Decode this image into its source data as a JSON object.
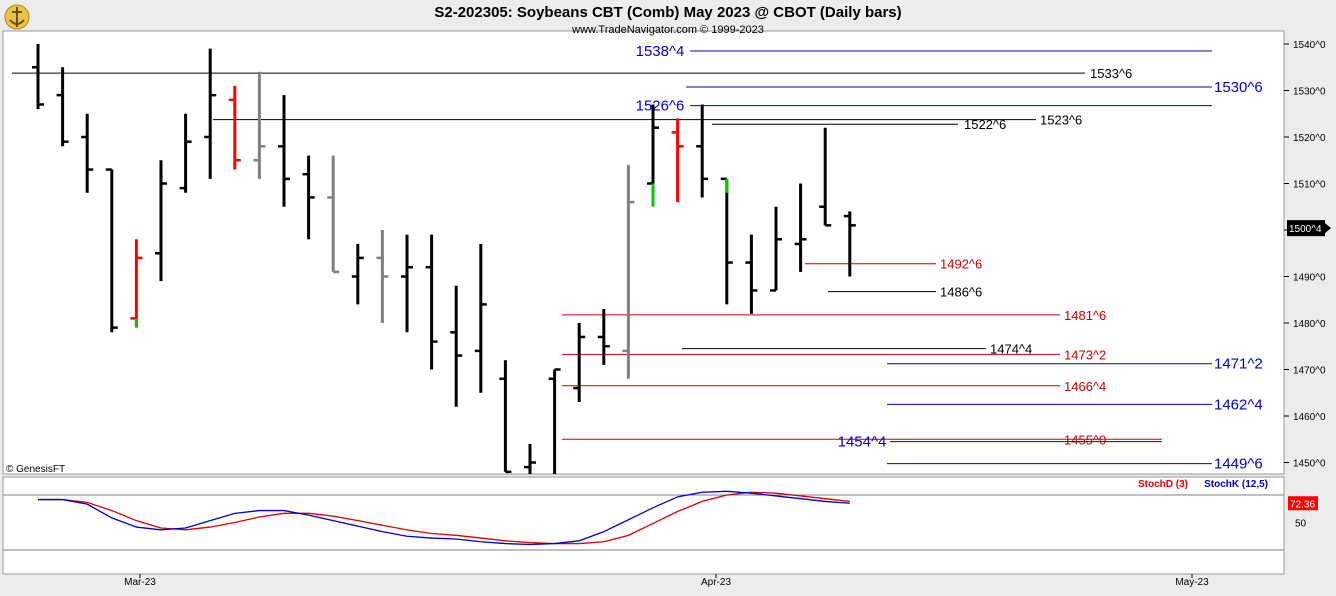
{
  "header": {
    "title": "S2-202305:  Soybeans CBT (Comb) May 2023 @ CBOT  (Daily bars)",
    "subtitle": "www.TradeNavigator.com © 1999-2023",
    "watermark": "© GenesisFT"
  },
  "colors": {
    "background": "#ffffff",
    "chrome": "#ececec",
    "bar_up": "#000000",
    "bar_inside": "#808080",
    "bar_red": "#ff0000",
    "bar_green": "#00cc00",
    "level_black": "#000000",
    "level_red": "#cc0000",
    "level_blue": "#0000cc",
    "stoch_d": "#dd0000",
    "stoch_k": "#0000cc",
    "price_tag_bg": "#000000",
    "stoch_tag_bg": "#ff0000"
  },
  "chart_data": [
    {
      "type": "ohlc",
      "title": "S2-202305:  Soybeans CBT (Comb) May 2023 @ CBOT  (Daily bars)",
      "y_axis_ticks": [
        "1540^0",
        "1530^0",
        "1520^0",
        "1510^0",
        "1500^0",
        "1490^0",
        "1480^0",
        "1470^0",
        "1460^0",
        "1450^0"
      ],
      "ylim": [
        1448,
        1542
      ],
      "x_axis_ticks": [
        "Mar-23",
        "Apr-23",
        "May-23"
      ],
      "last_price_label": "1500^4",
      "bars": [
        {
          "o": 1535,
          "h": 1540,
          "l": 1526,
          "c": 1527,
          "color": "black"
        },
        {
          "o": 1529,
          "h": 1535,
          "l": 1518,
          "c": 1519,
          "color": "black"
        },
        {
          "o": 1520,
          "h": 1525,
          "l": 1508,
          "c": 1513,
          "color": "black"
        },
        {
          "o": 1513,
          "h": 1513,
          "l": 1478,
          "c": 1479,
          "color": "black"
        },
        {
          "o": 1481,
          "h": 1498,
          "l": 1479,
          "c": 1494,
          "color": "red"
        },
        {
          "o": 1495,
          "h": 1515,
          "l": 1489,
          "c": 1510,
          "color": "black"
        },
        {
          "o": 1509,
          "h": 1525,
          "l": 1508,
          "c": 1519,
          "color": "black"
        },
        {
          "o": 1520,
          "h": 1539,
          "l": 1511,
          "c": 1529,
          "color": "black"
        },
        {
          "o": 1528,
          "h": 1531,
          "l": 1513,
          "c": 1515,
          "color": "red"
        },
        {
          "o": 1515,
          "h": 1534,
          "l": 1511,
          "c": 1518,
          "color": "gray"
        },
        {
          "o": 1518,
          "h": 1529,
          "l": 1505,
          "c": 1511,
          "color": "black"
        },
        {
          "o": 1512,
          "h": 1516,
          "l": 1498,
          "c": 1507,
          "color": "black"
        },
        {
          "o": 1507,
          "h": 1516,
          "l": 1491,
          "c": 1491,
          "color": "gray"
        },
        {
          "o": 1490,
          "h": 1497,
          "l": 1484,
          "c": 1494,
          "color": "black"
        },
        {
          "o": 1494,
          "h": 1500,
          "l": 1480,
          "c": 1490,
          "color": "gray"
        },
        {
          "o": 1490,
          "h": 1499,
          "l": 1478,
          "c": 1492,
          "color": "black"
        },
        {
          "o": 1492,
          "h": 1499,
          "l": 1470,
          "c": 1476,
          "color": "black"
        },
        {
          "o": 1478,
          "h": 1488,
          "l": 1462,
          "c": 1473,
          "color": "black"
        },
        {
          "o": 1474,
          "h": 1497,
          "l": 1465,
          "c": 1484,
          "color": "black"
        },
        {
          "o": 1468,
          "h": 1472,
          "l": 1448,
          "c": 1448,
          "color": "black"
        },
        {
          "o": 1449,
          "h": 1454,
          "l": 1446,
          "c": 1450,
          "color": "black"
        },
        {
          "o": 1468,
          "h": 1470,
          "l": 1446,
          "c": 1470,
          "color": "black"
        },
        {
          "o": 1466,
          "h": 1480,
          "l": 1463,
          "c": 1477,
          "color": "black"
        },
        {
          "o": 1477,
          "h": 1483,
          "l": 1471,
          "c": 1475,
          "color": "black"
        },
        {
          "o": 1474,
          "h": 1514,
          "l": 1468,
          "c": 1506,
          "color": "gray"
        },
        {
          "o": 1510,
          "h": 1527,
          "l": 1506,
          "c": 1522,
          "color": "black"
        },
        {
          "o": 1521,
          "h": 1524,
          "l": 1506,
          "c": 1518,
          "color": "red"
        },
        {
          "o": 1518,
          "h": 1527,
          "l": 1507,
          "c": 1511,
          "color": "black"
        },
        {
          "o": 1511,
          "h": 1511,
          "l": 1484,
          "c": 1493,
          "color": "black"
        },
        {
          "o": 1493,
          "h": 1499,
          "l": 1482,
          "c": 1487,
          "color": "black"
        },
        {
          "o": 1487,
          "h": 1505,
          "l": 1487,
          "c": 1498,
          "color": "black"
        },
        {
          "o": 1497,
          "h": 1510,
          "l": 1491,
          "c": 1498,
          "color": "black"
        },
        {
          "o": 1505,
          "h": 1522,
          "l": 1501,
          "c": 1501,
          "color": "black"
        },
        {
          "o": 1503,
          "h": 1504,
          "l": 1490,
          "c": 1501,
          "color": "black"
        }
      ],
      "price_levels": [
        {
          "label": "1538^4",
          "value": 1538.5,
          "color": "blue"
        },
        {
          "label": "1533^6",
          "value": 1533.75,
          "color": "black"
        },
        {
          "label": "1530^6",
          "value": 1530.75,
          "color": "blue"
        },
        {
          "label": "1526^6",
          "value": 1526.75,
          "color": "blue"
        },
        {
          "label": "1523^6",
          "value": 1523.75,
          "color": "black"
        },
        {
          "label": "1522^6",
          "value": 1522.75,
          "color": "black"
        },
        {
          "label": "1492^6",
          "value": 1492.75,
          "color": "red"
        },
        {
          "label": "1486^6",
          "value": 1486.75,
          "color": "black"
        },
        {
          "label": "1481^6",
          "value": 1481.75,
          "color": "red"
        },
        {
          "label": "1474^4",
          "value": 1474.5,
          "color": "black"
        },
        {
          "label": "1473^2",
          "value": 1473.25,
          "color": "red"
        },
        {
          "label": "1471^2",
          "value": 1471.25,
          "color": "blue"
        },
        {
          "label": "1466^4",
          "value": 1466.5,
          "color": "red"
        },
        {
          "label": "1462^4",
          "value": 1462.5,
          "color": "blue"
        },
        {
          "label": "1455^0",
          "value": 1455.0,
          "color": "red"
        },
        {
          "label": "1454^4",
          "value": 1454.5,
          "color": "blue"
        },
        {
          "label": "1449^6",
          "value": 1449.75,
          "color": "blue"
        }
      ]
    },
    {
      "type": "line",
      "legend": [
        "StochD (3)",
        "StochK (12,5)"
      ],
      "y_axis_ticks": [
        "50"
      ],
      "ylim": [
        0,
        100
      ],
      "last_value_label": "72.36",
      "series": [
        {
          "name": "StochD (3)",
          "values": [
            75,
            75,
            72,
            63,
            52,
            44,
            42,
            45,
            50,
            56,
            60,
            60,
            57,
            52,
            47,
            42,
            38,
            36,
            33,
            30,
            28,
            27,
            27,
            29,
            36,
            49,
            62,
            73,
            80,
            83,
            82,
            79,
            76,
            73
          ]
        },
        {
          "name": "StochK (12,5)",
          "values": [
            75,
            75,
            70,
            55,
            45,
            42,
            44,
            52,
            60,
            63,
            63,
            58,
            52,
            46,
            40,
            35,
            33,
            32,
            29,
            27,
            26,
            27,
            30,
            40,
            53,
            66,
            78,
            83,
            84,
            82,
            79,
            76,
            73,
            71
          ]
        }
      ]
    }
  ]
}
